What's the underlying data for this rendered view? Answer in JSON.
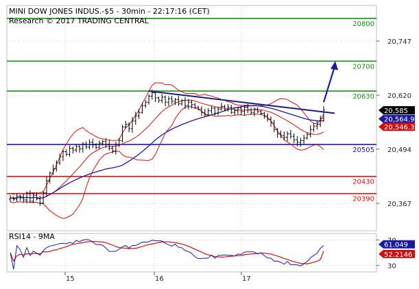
{
  "header": {
    "line1": "MINI DOW JONES INDUS.-$5 - 30min - 22:17:16 (CET)",
    "line2": "Research © 2017 TRADING CENTRAL"
  },
  "chart_data": {
    "type": "candlestick",
    "instrument": "MINI DOW JONES INDUS.-$5",
    "timeframe": "30min",
    "ylim": [
      20330,
      20840
    ],
    "y_ticks": [
      "20,747",
      "20,620",
      "20,494",
      "20,367"
    ],
    "x_ticks": [
      "15",
      "16",
      "17"
    ],
    "levels": [
      {
        "label": "20800",
        "value": 20800,
        "color": "#1a8c1a"
      },
      {
        "label": "20700",
        "value": 20700,
        "color": "#1a8c1a"
      },
      {
        "label": "20630",
        "value": 20630,
        "color": "#1a8c1a"
      },
      {
        "label": "20505",
        "value": 20505,
        "color": "#1a1aa0"
      },
      {
        "label": "20430",
        "value": 20430,
        "color": "#d01010"
      },
      {
        "label": "20390",
        "value": 20390,
        "color": "#d01010"
      }
    ],
    "price_badges": [
      {
        "label": "20,585",
        "value": 20585,
        "color": "#000000"
      },
      {
        "label": "20,564.9",
        "value": 20564.9,
        "color": "#1a1aa0"
      },
      {
        "label": "20,546.3",
        "value": 20546.3,
        "color": "#d01010"
      }
    ],
    "bollinger_color": "#d01010",
    "ma_color": "#1a1aa0",
    "trendline_color": "#1a1a80",
    "arrow_color": "#1a1aa0",
    "price_series": [
      20380,
      20377,
      20384,
      20382,
      20375,
      20390,
      20372,
      20386,
      20378,
      20368,
      20392,
      20420,
      20438,
      20448,
      20462,
      20476,
      20488,
      20482,
      20496,
      20492,
      20500,
      20495,
      20506,
      20499,
      20510,
      20504,
      20498,
      20508,
      20512,
      20505,
      20496,
      20490,
      20505,
      20514,
      20546,
      20552,
      20542,
      20560,
      20572,
      20580,
      20596,
      20604,
      20618,
      20626,
      20614,
      20608,
      20616,
      20604,
      20612,
      20606,
      20610,
      20600,
      20608,
      20596,
      20604,
      20598,
      20592,
      20588,
      20580,
      20574,
      20584,
      20590,
      20578,
      20588,
      20594,
      20586,
      20592,
      20580,
      20584,
      20590,
      20582,
      20592,
      20586,
      20580,
      20588,
      20582,
      20578,
      20572,
      20564,
      20556,
      20540,
      20530,
      20526,
      20522,
      20530,
      20524,
      20516,
      20510,
      20514,
      20520,
      20528,
      20540,
      20548,
      20552,
      20566,
      20586
    ],
    "rsi": {
      "title": "RSI14 - 9MA",
      "ylim": [
        20,
        80
      ],
      "y_ticks": [
        "70",
        "30"
      ],
      "badges": [
        {
          "label": "61.049",
          "value": 61.049,
          "color": "#1a1aa0"
        },
        {
          "label": "52.2146",
          "value": 52.2146,
          "color": "#d01010"
        }
      ],
      "rsi_color": "#1a1aa0",
      "ma_color": "#d01010"
    }
  }
}
